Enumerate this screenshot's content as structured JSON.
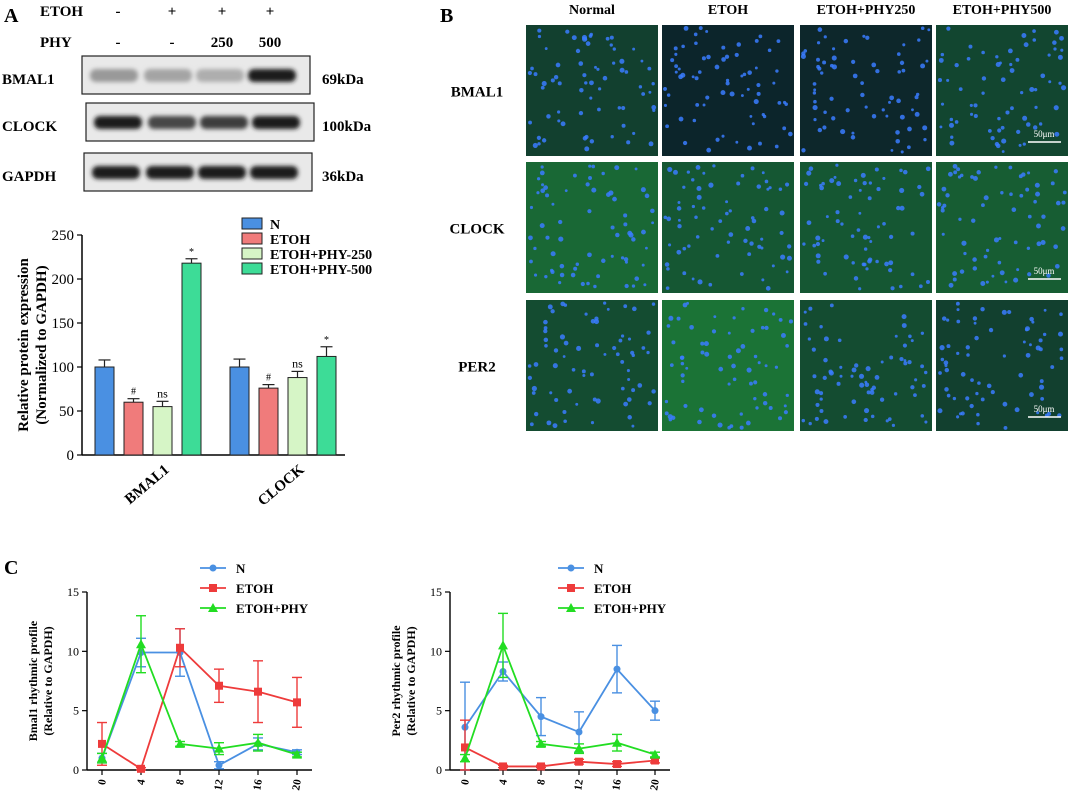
{
  "panels": {
    "a": "A",
    "b": "B",
    "c": "C"
  },
  "blot": {
    "etoh_label": "ETOH",
    "phy_label": "PHY",
    "etoh_signs": [
      "-",
      "+",
      "+",
      "+"
    ],
    "phy_values": [
      "-",
      "-",
      "250",
      "500"
    ],
    "rows": [
      {
        "name": "BMAL1",
        "kda": "69kDa",
        "intensity": [
          0.35,
          0.3,
          0.25,
          0.95
        ]
      },
      {
        "name": "CLOCK",
        "kda": "100kDa",
        "intensity": [
          0.95,
          0.75,
          0.8,
          0.95
        ]
      },
      {
        "name": "GAPDH",
        "kda": "36kDa",
        "intensity": [
          0.95,
          0.95,
          0.95,
          0.95
        ]
      }
    ]
  },
  "micro": {
    "columns": [
      "Normal",
      "ETOH",
      "ETOH+PHY250",
      "ETOH+PHY500"
    ],
    "rows": [
      "BMAL1",
      "CLOCK",
      "PER2"
    ],
    "scale_bar": "50μm",
    "colors": {
      "bg": "#0b1a2a",
      "nuclei": "#3a7cff",
      "tissue": "#1f8a3a"
    }
  },
  "chart_data": [
    {
      "type": "bar",
      "title": "",
      "ylabel": "Relative protein expression (Normalized to GAPDH)",
      "ylabel_lines": [
        "Relative protein expression",
        "(Normalized to GAPDH)"
      ],
      "xlabel": "",
      "ylim": [
        0,
        250
      ],
      "yticks": [
        0,
        50,
        100,
        150,
        200,
        250
      ],
      "categories": [
        "BMAL1",
        "CLOCK"
      ],
      "series": [
        {
          "name": "N",
          "color": "#4a90e2",
          "values": [
            100,
            100
          ],
          "errors": [
            8,
            9
          ],
          "marks": [
            "",
            ""
          ]
        },
        {
          "name": "ETOH",
          "color": "#f07b7b",
          "values": [
            60,
            76
          ],
          "errors": [
            4,
            4
          ],
          "marks": [
            "#",
            "#"
          ]
        },
        {
          "name": "ETOH+PHY-250",
          "color": "#d6f5c6",
          "values": [
            55,
            88
          ],
          "errors": [
            6,
            7
          ],
          "marks": [
            "ns",
            "ns"
          ]
        },
        {
          "name": "ETOH+PHY-500",
          "color": "#3ddc97",
          "values": [
            218,
            112
          ],
          "errors": [
            5,
            11
          ],
          "marks": [
            "*",
            "*"
          ]
        }
      ]
    },
    {
      "type": "line",
      "title": "",
      "ylabel": "Bmal1 rhythmic profile (Relative to GAPDH)",
      "ylabel_lines": [
        "Bmal1 rhythmic profile",
        "(Relative to GAPDH)"
      ],
      "xlabel": "",
      "ylim": [
        0,
        15
      ],
      "yticks": [
        0,
        5,
        10,
        15
      ],
      "x": [
        0,
        4,
        8,
        12,
        16,
        20
      ],
      "series": [
        {
          "name": "N",
          "color": "#4a90e2",
          "marker": "circle",
          "values": [
            1.0,
            9.9,
            9.9,
            0.4,
            2.2,
            1.5
          ],
          "errors": [
            0.4,
            1.2,
            2.0,
            0.3,
            0.5,
            0.2
          ]
        },
        {
          "name": "ETOH",
          "color": "#ee3b3b",
          "marker": "square",
          "values": [
            2.2,
            0.1,
            10.3,
            7.1,
            6.6,
            5.7
          ],
          "errors": [
            1.8,
            0.1,
            1.6,
            1.4,
            2.6,
            2.1
          ]
        },
        {
          "name": "ETOH+PHY",
          "color": "#22dd22",
          "marker": "triangle",
          "values": [
            1.0,
            10.6,
            2.2,
            1.8,
            2.3,
            1.3
          ],
          "errors": [
            0.4,
            2.4,
            0.2,
            0.5,
            0.7,
            0.2
          ]
        }
      ]
    },
    {
      "type": "line",
      "title": "",
      "ylabel": "Per2 rhythmic profile (Relative to GAPDH)",
      "ylabel_lines": [
        "Per2 rhythmic profile",
        "(Relative to GAPDH)"
      ],
      "xlabel": "",
      "ylim": [
        0,
        15
      ],
      "yticks": [
        0,
        5,
        10,
        15
      ],
      "x": [
        0,
        4,
        8,
        12,
        16,
        20
      ],
      "series": [
        {
          "name": "N",
          "color": "#4a90e2",
          "marker": "circle",
          "values": [
            3.6,
            8.3,
            4.5,
            3.2,
            8.5,
            5.0
          ],
          "errors": [
            3.8,
            0.8,
            1.6,
            1.7,
            2.0,
            0.8
          ]
        },
        {
          "name": "ETOH",
          "color": "#ee3b3b",
          "marker": "square",
          "values": [
            1.9,
            0.3,
            0.3,
            0.7,
            0.5,
            0.8
          ],
          "errors": [
            2.3,
            0.1,
            0.1,
            0.2,
            0.2,
            0.2
          ]
        },
        {
          "name": "ETOH+PHY",
          "color": "#22dd22",
          "marker": "triangle",
          "values": [
            1.0,
            10.5,
            2.2,
            1.8,
            2.3,
            1.3
          ],
          "errors": [
            0.3,
            2.7,
            0.2,
            0.4,
            0.7,
            0.2
          ]
        }
      ]
    }
  ]
}
